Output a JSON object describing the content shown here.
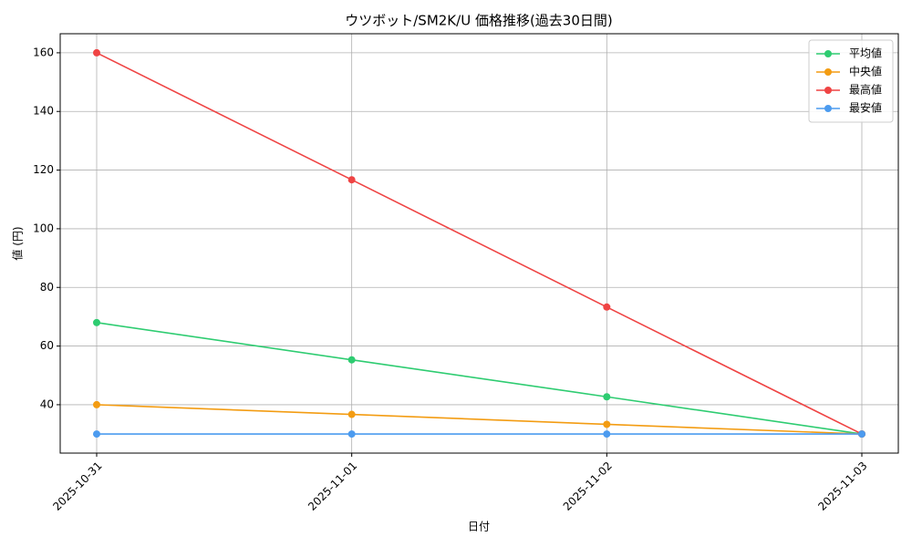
{
  "chart_data": {
    "type": "line",
    "title": "ウツボット/SM2K/U 価格推移(過去30日間)",
    "xlabel": "日付",
    "ylabel": "値 (円)",
    "x": [
      "2025-10-31",
      "2025-11-01",
      "2025-11-02",
      "2025-11-03"
    ],
    "series": [
      {
        "name": "平均値",
        "color": "#2ecc71",
        "values": [
          68,
          55.3,
          42.7,
          30
        ]
      },
      {
        "name": "中央値",
        "color": "#f39c12",
        "values": [
          40,
          36.7,
          33.3,
          30
        ]
      },
      {
        "name": "最高値",
        "color": "#ef4444",
        "values": [
          160,
          116.7,
          73.3,
          30
        ]
      },
      {
        "name": "最安値",
        "color": "#4c9bef",
        "values": [
          30,
          30,
          30,
          30
        ]
      }
    ],
    "ylim": [
      23.5,
      166.5
    ],
    "yticks": [
      40,
      60,
      80,
      100,
      120,
      140,
      160
    ],
    "grid": true,
    "legend": "upper-right"
  }
}
